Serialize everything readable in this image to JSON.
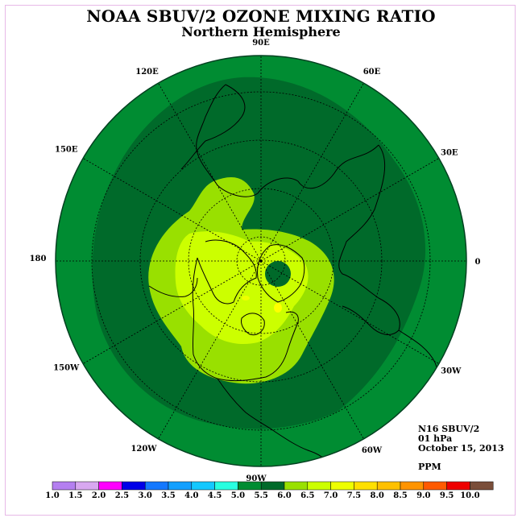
{
  "header": {
    "title": "NOAA SBUV/2 OZONE MIXING RATIO",
    "subtitle": "Northern Hemisphere"
  },
  "map": {
    "projection": "polar stereographic, north pole",
    "longitude_labels": [
      "90E",
      "60E",
      "30E",
      "0",
      "30W",
      "60W",
      "90W",
      "120W",
      "150W",
      "180",
      "150E",
      "120E"
    ],
    "ocean_band_color": "#008c32",
    "mid_band_color": "#006a2a",
    "inner_band_color": "#99e000",
    "core_band_color": "#ccff00",
    "peak_color": "#ffff00"
  },
  "info": {
    "satellite": "N16 SBUV/2",
    "level": "01 hPa",
    "date": "October 15, 2013",
    "units": "PPM"
  },
  "colorbar": {
    "ticks": [
      "1.0",
      "1.5",
      "2.0",
      "2.5",
      "3.0",
      "3.5",
      "4.0",
      "4.5",
      "5.0",
      "5.5",
      "6.0",
      "6.5",
      "7.0",
      "7.5",
      "8.0",
      "8.5",
      "9.0",
      "9.5",
      "10.0"
    ],
    "colors": [
      "#b47ff0",
      "#d8a8f0",
      "#ff00ff",
      "#0000e8",
      "#1478ff",
      "#14a0ff",
      "#14c8ff",
      "#28ffe0",
      "#008c32",
      "#006a2a",
      "#99e000",
      "#ccff00",
      "#eeff00",
      "#ffe000",
      "#ffc000",
      "#ff9400",
      "#ff5a00",
      "#ee0000",
      "#7a4e3a"
    ]
  }
}
